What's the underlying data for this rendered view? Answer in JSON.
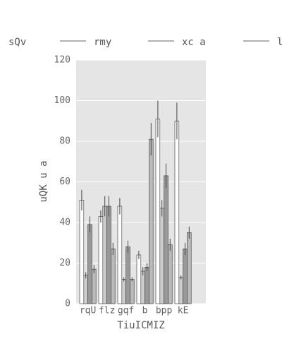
{
  "chart_data": {
    "type": "bar",
    "categories": [
      "rqU",
      "flz",
      "gqf",
      "b",
      "bpp",
      "kE"
    ],
    "series": [
      {
        "name": "sQv",
        "color": "#ffffff",
        "values": [
          51,
          43,
          48,
          24,
          91,
          90
        ],
        "errors": [
          5,
          3,
          4,
          2,
          9,
          9
        ]
      },
      {
        "name": "rmy",
        "color": "#cccccc",
        "values": [
          14,
          48,
          12,
          16,
          47,
          13
        ],
        "errors": [
          1.5,
          5,
          1,
          2,
          4,
          1
        ]
      },
      {
        "name": "xc a",
        "color": "#999999",
        "values": [
          39,
          48,
          28,
          18,
          63,
          27
        ],
        "errors": [
          4,
          5,
          3,
          2,
          6,
          3
        ]
      },
      {
        "name": "l",
        "color": "#bbbbbb",
        "values": [
          17,
          27,
          12,
          81,
          29,
          35
        ],
        "errors": [
          2,
          3,
          1,
          8,
          3,
          3
        ]
      }
    ],
    "x_label": "TiuICMIZ",
    "y_label": "uQK u a",
    "ylim": [
      0,
      120
    ],
    "yticks": [
      0,
      20,
      40,
      60,
      80,
      100,
      120
    ],
    "grid": true
  }
}
